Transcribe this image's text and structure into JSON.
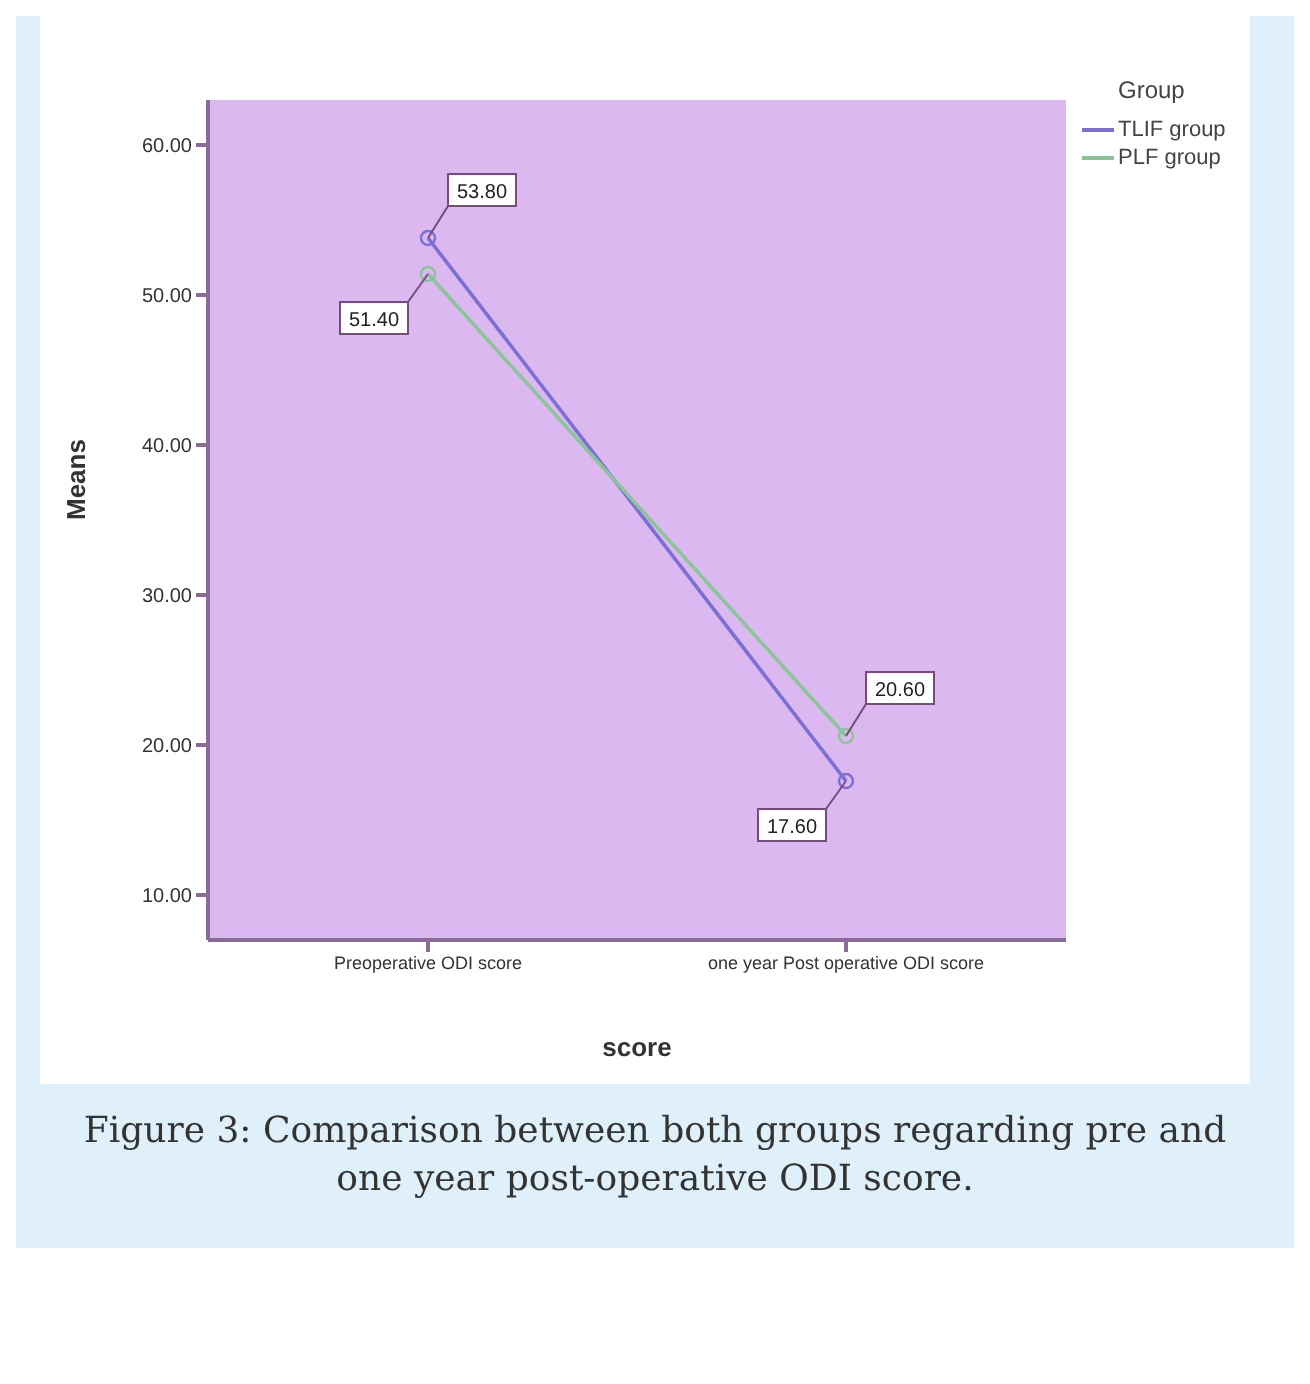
{
  "chart_data": {
    "type": "line",
    "xlabel": "score",
    "ylabel": "Means",
    "legend_title": "Group",
    "categories": [
      "Preoperative ODI score",
      "one year Post operative ODI score"
    ],
    "series": [
      {
        "name": "TLIF group",
        "color": "#7b6fd6",
        "values": [
          53.8,
          17.6
        ],
        "value_labels": [
          "53.80",
          "17.60"
        ]
      },
      {
        "name": "PLF group",
        "color": "#8cc49a",
        "values": [
          51.4,
          20.6
        ],
        "value_labels": [
          "51.40",
          "20.60"
        ]
      }
    ],
    "ylim": [
      7,
      63
    ],
    "yticks": [
      {
        "value": 10,
        "label": "10.00"
      },
      {
        "value": 20,
        "label": "20.00"
      },
      {
        "value": 30,
        "label": "30.00"
      },
      {
        "value": 40,
        "label": "40.00"
      },
      {
        "value": 50,
        "label": "50.00"
      },
      {
        "value": 60,
        "label": "60.00"
      }
    ],
    "grid": false,
    "legend": "top right",
    "marker": "circle",
    "line_style": "solid",
    "annotations": [
      "Figure 3: Comparison between both groups regarding pre and one year post-operative ODI score."
    ]
  }
}
